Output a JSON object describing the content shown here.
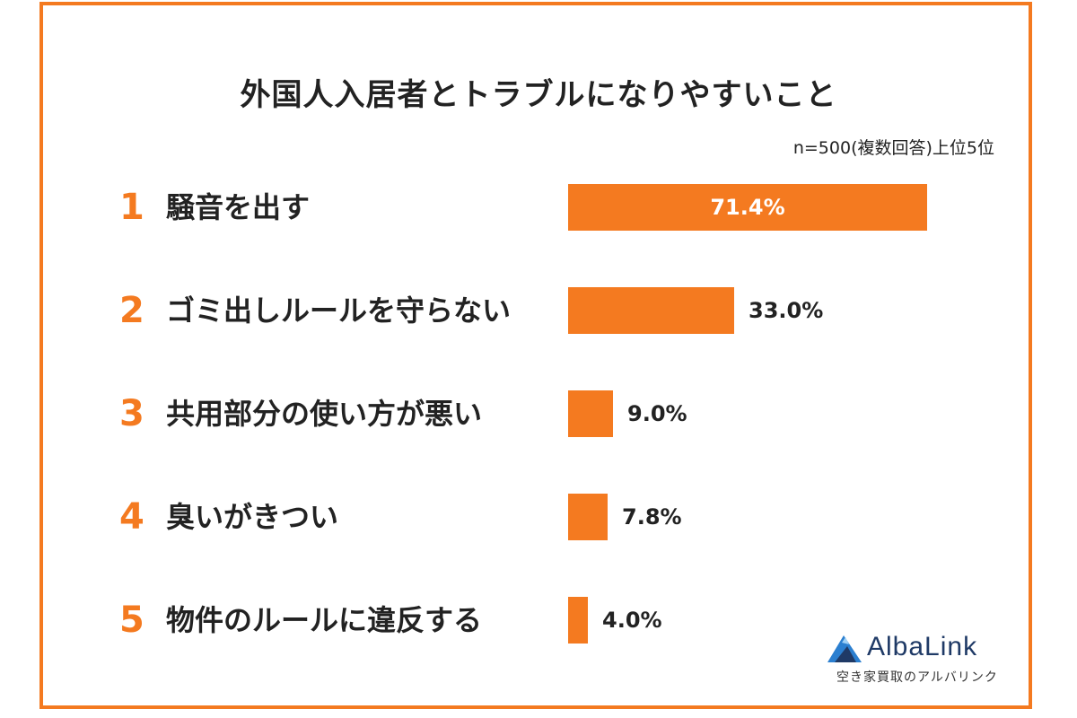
{
  "chart_data": {
    "type": "bar",
    "orientation": "horizontal",
    "title": "外国人入居者とトラブルになりやすいこと",
    "note": "n=500(複数回答)上位5位",
    "xlim": [
      0,
      100
    ],
    "items": [
      {
        "rank": "1",
        "label": "騒音を出す",
        "value": 71.4,
        "value_label": "71.4%"
      },
      {
        "rank": "2",
        "label": "ゴミ出しルールを守らない",
        "value": 33.0,
        "value_label": "33.0%"
      },
      {
        "rank": "3",
        "label": "共用部分の使い方が悪い",
        "value": 9.0,
        "value_label": "9.0%"
      },
      {
        "rank": "4",
        "label": "臭いがきつい",
        "value": 7.8,
        "value_label": "7.8%"
      },
      {
        "rank": "5",
        "label": "物件のルールに違反する",
        "value": 4.0,
        "value_label": "4.0%"
      }
    ]
  },
  "brand": {
    "name": "AlbaLink",
    "tagline": "空き家買取のアルバリンク",
    "icon": "mountain-logo-icon"
  },
  "colors": {
    "accent": "#f47a20",
    "border": "#f47a20",
    "brand_blue": "#1f3a66"
  }
}
